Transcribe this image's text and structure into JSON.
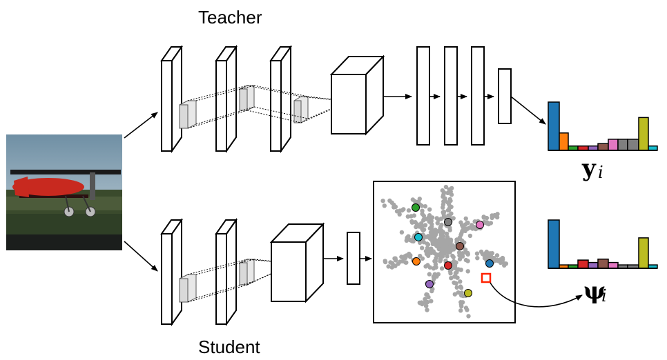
{
  "labels": {
    "teacher": "Teacher",
    "student": "Student",
    "teacher_output_symbol": "y",
    "teacher_output_subscript": "i",
    "student_output_symbol": "ψ",
    "student_output_subscript": "i"
  },
  "colors": {
    "blue": "#1f77b4",
    "orange": "#ff7f0e",
    "green": "#2ca02c",
    "red": "#d62728",
    "purple": "#9467bd",
    "brown": "#8c564b",
    "pink": "#e377c2",
    "gray": "#7f7f7f",
    "olive": "#bcbd22",
    "cyan": "#17becf",
    "point_cloud": "#a6a6a6",
    "highlight": "#ff2200"
  },
  "histograms": {
    "teacher": [
      1.0,
      0.36,
      0.09,
      0.09,
      0.09,
      0.14,
      0.23,
      0.23,
      0.23,
      0.68,
      0.09
    ],
    "student": [
      1.0,
      0.07,
      0.07,
      0.17,
      0.12,
      0.19,
      0.12,
      0.07,
      0.07,
      0.63,
      0.07
    ]
  }
}
